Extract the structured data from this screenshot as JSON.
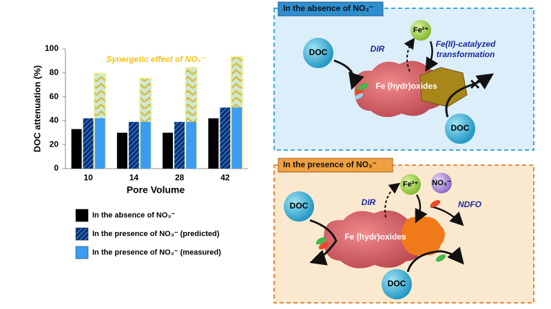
{
  "chart_data": {
    "type": "bar",
    "y_label": "DOC attenuation (%)",
    "x_label": "Pore Volume",
    "annotation": "Synergetic effect of NO₃⁻",
    "categories": [
      "10",
      "14",
      "28",
      "42"
    ],
    "series": [
      {
        "name": "In the absence of NO₃⁻",
        "color": "#000000",
        "values": [
          33,
          30,
          30,
          42
        ]
      },
      {
        "name": "In the presence of NO₃⁻ (predicted)",
        "color": "#1f5fbf",
        "pattern": "hatch",
        "values": [
          42,
          39,
          39,
          51
        ]
      },
      {
        "name": "In the presence of NO₃⁻ (measured)",
        "color": "#3d9bf0",
        "pattern": "chevron",
        "values": [
          79,
          75,
          84,
          93
        ]
      }
    ],
    "ylim": [
      0,
      100
    ],
    "yticks": [
      0,
      20,
      40,
      60,
      80,
      100
    ]
  },
  "panels": [
    {
      "title": "In the absence of NO₃⁻",
      "labels": [
        "DOC",
        "DIR",
        "Fe²⁺",
        "Fe(II)-catalyzed",
        "transformation",
        "Fe (hydr)oxides",
        "DOC"
      ]
    },
    {
      "title": "In the presence of NO₃⁻",
      "labels": [
        "DOC",
        "DIR",
        "Fe²⁺",
        "NO₃⁻",
        "NDFO",
        "Fe (hydr)oxides",
        "DOC"
      ]
    }
  ]
}
